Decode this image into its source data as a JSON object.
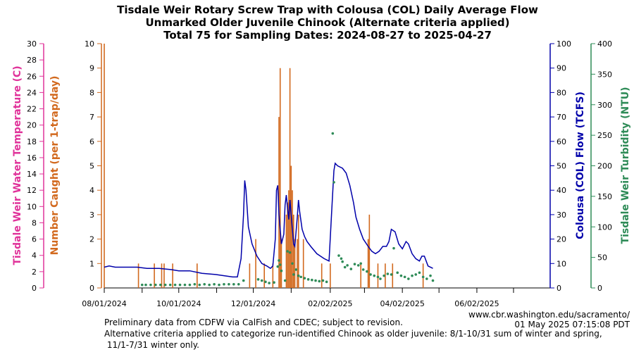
{
  "chart_data": {
    "type": "bar+line+scatter",
    "title": [
      "Tisdale Weir Rotary Screw Trap with Colousa (COL) Daily Average Flow",
      "Unmarked Older Juvenile Chinook (Alternate criteria applied)",
      "Total 75 for Sampling Dates: 2024-08-27 to 2025-04-27"
    ],
    "x_axis": {
      "start": "2024-08-01",
      "end": "2025-08-01",
      "tick_labels": [
        {
          "date": "2024-08-01",
          "label": "08/01/2024"
        },
        {
          "date": "2024-10-01",
          "label": "10/01/2024"
        },
        {
          "date": "2024-12-01",
          "label": "12/01/2024"
        },
        {
          "date": "2025-02-02",
          "label": "02/02/2025"
        },
        {
          "date": "2025-04-02",
          "label": "04/02/2025"
        },
        {
          "date": "2025-06-02",
          "label": "06/02/2025"
        }
      ],
      "minor_ticks": [
        "2024-09-01",
        "2024-11-01",
        "2025-01-01",
        "2025-03-02",
        "2025-05-02",
        "2025-07-02"
      ]
    },
    "axes": {
      "temperature": {
        "label": "Tisdale Weir Water Temperature (C)",
        "ylim": [
          0,
          30
        ],
        "ticks": [
          0,
          2,
          4,
          6,
          8,
          10,
          12,
          14,
          16,
          18,
          20,
          22,
          24,
          26,
          28,
          30
        ],
        "color": "#e0339a"
      },
      "catch": {
        "label": "Number Caught (per 1-trap/day)",
        "ylim": [
          0,
          10
        ],
        "ticks": [
          0,
          1,
          2,
          3,
          4,
          5,
          6,
          7,
          8,
          9,
          10
        ],
        "color": "#d2691e"
      },
      "flow": {
        "label": "Colousa (COL) Flow (TCFS)",
        "ylim": [
          0,
          100
        ],
        "ticks": [
          0,
          10,
          20,
          30,
          40,
          50,
          60,
          70,
          80,
          90,
          100
        ],
        "color": "#0000aa"
      },
      "turbidity": {
        "label": "Tisdale Weir Turbidity (NTU)",
        "ylim": [
          0,
          400
        ],
        "ticks": [
          0,
          50,
          100,
          150,
          200,
          250,
          300,
          350,
          400
        ],
        "color": "#2e8b57"
      }
    },
    "series": [
      {
        "name": "Number Caught",
        "kind": "bar",
        "axis": "catch",
        "points": [
          [
            "2024-08-01",
            10
          ],
          [
            "2024-08-29",
            1
          ],
          [
            "2024-09-11",
            1
          ],
          [
            "2024-09-17",
            1
          ],
          [
            "2024-09-19",
            1
          ],
          [
            "2024-09-26",
            1
          ],
          [
            "2024-10-16",
            1
          ],
          [
            "2024-11-28",
            1
          ],
          [
            "2024-12-03",
            2
          ],
          [
            "2024-12-10",
            1
          ],
          [
            "2024-12-17",
            1
          ],
          [
            "2024-12-22",
            7
          ],
          [
            "2024-12-23",
            9
          ],
          [
            "2024-12-24",
            2
          ],
          [
            "2024-12-28",
            3
          ],
          [
            "2024-12-29",
            3.5
          ],
          [
            "2024-12-30",
            4
          ],
          [
            "2024-12-31",
            9
          ],
          [
            "2025-01-01",
            5
          ],
          [
            "2025-01-02",
            4
          ],
          [
            "2025-01-03",
            3
          ],
          [
            "2025-01-04",
            2
          ],
          [
            "2025-01-06",
            2
          ],
          [
            "2025-01-07",
            3
          ],
          [
            "2025-01-11",
            2
          ],
          [
            "2025-01-26",
            1
          ],
          [
            "2025-02-02",
            1
          ],
          [
            "2025-02-27",
            1
          ],
          [
            "2025-03-05",
            2
          ],
          [
            "2025-03-06",
            3
          ],
          [
            "2025-03-13",
            1
          ],
          [
            "2025-03-19",
            1
          ],
          [
            "2025-03-25",
            1
          ],
          [
            "2025-04-19",
            1
          ]
        ]
      },
      {
        "name": "Colousa (COL) Flow",
        "kind": "line",
        "axis": "flow",
        "points": [
          [
            "2024-08-01",
            8.5
          ],
          [
            "2024-08-05",
            9
          ],
          [
            "2024-08-10",
            8.5
          ],
          [
            "2024-08-20",
            8.5
          ],
          [
            "2024-08-28",
            8.5
          ],
          [
            "2024-09-05",
            8
          ],
          [
            "2024-09-15",
            8
          ],
          [
            "2024-09-25",
            7.5
          ],
          [
            "2024-10-01",
            7
          ],
          [
            "2024-10-10",
            7
          ],
          [
            "2024-10-20",
            6
          ],
          [
            "2024-10-31",
            5.5
          ],
          [
            "2024-11-07",
            5
          ],
          [
            "2024-11-14",
            4.5
          ],
          [
            "2024-11-18",
            4.5
          ],
          [
            "2024-11-21",
            12
          ],
          [
            "2024-11-23",
            30
          ],
          [
            "2024-11-24",
            44
          ],
          [
            "2024-11-25",
            40
          ],
          [
            "2024-11-27",
            25
          ],
          [
            "2024-11-30",
            18
          ],
          [
            "2024-12-04",
            13
          ],
          [
            "2024-12-08",
            10
          ],
          [
            "2024-12-12",
            9
          ],
          [
            "2024-12-15",
            8
          ],
          [
            "2024-12-17",
            9
          ],
          [
            "2024-12-19",
            20
          ],
          [
            "2024-12-20",
            40
          ],
          [
            "2024-12-21",
            42
          ],
          [
            "2024-12-22",
            30
          ],
          [
            "2024-12-24",
            18
          ],
          [
            "2024-12-26",
            22
          ],
          [
            "2024-12-27",
            34
          ],
          [
            "2024-12-28",
            38
          ],
          [
            "2024-12-29",
            33
          ],
          [
            "2024-12-30",
            28
          ],
          [
            "2024-12-31",
            36
          ],
          [
            "2025-01-01",
            30
          ],
          [
            "2025-01-03",
            18
          ],
          [
            "2025-01-04",
            17
          ],
          [
            "2025-01-06",
            29
          ],
          [
            "2025-01-07",
            36
          ],
          [
            "2025-01-08",
            31
          ],
          [
            "2025-01-10",
            24
          ],
          [
            "2025-01-12",
            21
          ],
          [
            "2025-01-14",
            19
          ],
          [
            "2025-01-17",
            17
          ],
          [
            "2025-01-22",
            14
          ],
          [
            "2025-01-28",
            12
          ],
          [
            "2025-02-01",
            11
          ],
          [
            "2025-02-03",
            30
          ],
          [
            "2025-02-05",
            48
          ],
          [
            "2025-02-06",
            51
          ],
          [
            "2025-02-08",
            50
          ],
          [
            "2025-02-12",
            49
          ],
          [
            "2025-02-15",
            47
          ],
          [
            "2025-02-18",
            42
          ],
          [
            "2025-02-21",
            35
          ],
          [
            "2025-02-23",
            29
          ],
          [
            "2025-02-26",
            24
          ],
          [
            "2025-03-01",
            20
          ],
          [
            "2025-03-05",
            17
          ],
          [
            "2025-03-08",
            15
          ],
          [
            "2025-03-11",
            14
          ],
          [
            "2025-03-14",
            15
          ],
          [
            "2025-03-17",
            17
          ],
          [
            "2025-03-20",
            17
          ],
          [
            "2025-03-22",
            19
          ],
          [
            "2025-03-24",
            24
          ],
          [
            "2025-03-27",
            23
          ],
          [
            "2025-03-30",
            18
          ],
          [
            "2025-04-02",
            16
          ],
          [
            "2025-04-05",
            19
          ],
          [
            "2025-04-07",
            18
          ],
          [
            "2025-04-10",
            14
          ],
          [
            "2025-04-13",
            12
          ],
          [
            "2025-04-16",
            11
          ],
          [
            "2025-04-18",
            13
          ],
          [
            "2025-04-20",
            13
          ],
          [
            "2025-04-23",
            9
          ],
          [
            "2025-04-27",
            8
          ]
        ]
      },
      {
        "name": "Tisdale Weir Turbidity",
        "kind": "scatter",
        "axis": "turbidity",
        "points": [
          [
            "2024-09-01",
            5
          ],
          [
            "2024-09-04",
            5
          ],
          [
            "2024-09-08",
            5
          ],
          [
            "2024-09-12",
            5
          ],
          [
            "2024-09-16",
            5
          ],
          [
            "2024-09-20",
            5
          ],
          [
            "2024-09-24",
            5
          ],
          [
            "2024-09-28",
            5
          ],
          [
            "2024-10-02",
            5
          ],
          [
            "2024-10-06",
            5
          ],
          [
            "2024-10-10",
            5
          ],
          [
            "2024-10-14",
            6
          ],
          [
            "2024-10-18",
            5
          ],
          [
            "2024-10-22",
            6
          ],
          [
            "2024-10-26",
            5
          ],
          [
            "2024-10-30",
            6
          ],
          [
            "2024-11-03",
            5
          ],
          [
            "2024-11-07",
            6
          ],
          [
            "2024-11-11",
            6
          ],
          [
            "2024-11-15",
            6
          ],
          [
            "2024-11-19",
            6
          ],
          [
            "2024-11-23",
            12
          ],
          [
            "2024-12-05",
            14
          ],
          [
            "2024-12-08",
            12
          ],
          [
            "2024-12-11",
            10
          ],
          [
            "2024-12-14",
            8
          ],
          [
            "2024-12-18",
            9
          ],
          [
            "2024-12-21",
            35
          ],
          [
            "2024-12-22",
            45
          ],
          [
            "2024-12-23",
            38
          ],
          [
            "2024-12-24",
            28
          ],
          [
            "2024-12-27",
            12
          ],
          [
            "2024-12-29",
            60
          ],
          [
            "2024-12-31",
            58
          ],
          [
            "2025-01-02",
            40
          ],
          [
            "2025-01-03",
            22
          ],
          [
            "2025-01-05",
            30
          ],
          [
            "2025-01-07",
            20
          ],
          [
            "2025-01-09",
            18
          ],
          [
            "2025-01-12",
            16
          ],
          [
            "2025-01-15",
            14
          ],
          [
            "2025-01-18",
            13
          ],
          [
            "2025-01-21",
            12
          ],
          [
            "2025-01-24",
            11
          ],
          [
            "2025-01-27",
            12
          ],
          [
            "2025-01-30",
            10
          ],
          [
            "2025-02-04",
            253
          ],
          [
            "2025-02-05",
            173
          ],
          [
            "2025-02-09",
            53
          ],
          [
            "2025-02-11",
            48
          ],
          [
            "2025-02-12",
            43
          ],
          [
            "2025-02-14",
            34
          ],
          [
            "2025-02-16",
            37
          ],
          [
            "2025-02-19",
            31
          ],
          [
            "2025-02-22",
            39
          ],
          [
            "2025-02-25",
            37
          ],
          [
            "2025-02-27",
            40
          ],
          [
            "2025-03-01",
            30
          ],
          [
            "2025-03-04",
            27
          ],
          [
            "2025-03-07",
            22
          ],
          [
            "2025-03-10",
            20
          ],
          [
            "2025-03-13",
            18
          ],
          [
            "2025-03-15",
            15
          ],
          [
            "2025-03-18",
            20
          ],
          [
            "2025-03-21",
            23
          ],
          [
            "2025-03-24",
            22
          ],
          [
            "2025-03-26",
            65
          ],
          [
            "2025-03-29",
            25
          ],
          [
            "2025-04-01",
            20
          ],
          [
            "2025-04-04",
            18
          ],
          [
            "2025-04-07",
            15
          ],
          [
            "2025-04-10",
            20
          ],
          [
            "2025-04-13",
            22
          ],
          [
            "2025-04-16",
            25
          ],
          [
            "2025-04-19",
            18
          ],
          [
            "2025-04-22",
            15
          ],
          [
            "2025-04-25",
            20
          ],
          [
            "2025-04-27",
            12
          ]
        ]
      }
    ],
    "grid": false,
    "footnotes": [
      "Preliminary data from CDFW via CalFish and CDEC; subject to revision.",
      "Alternative criteria applied to categorize run-identified Chinook as older juvenile: 8/1-10/31 sum of winter and spring,",
      " 11/1-7/31 winter only."
    ],
    "source": [
      "www.cbr.washington.edu/sacramento/",
      "01 May 2025 07:15:08 PDT"
    ]
  }
}
